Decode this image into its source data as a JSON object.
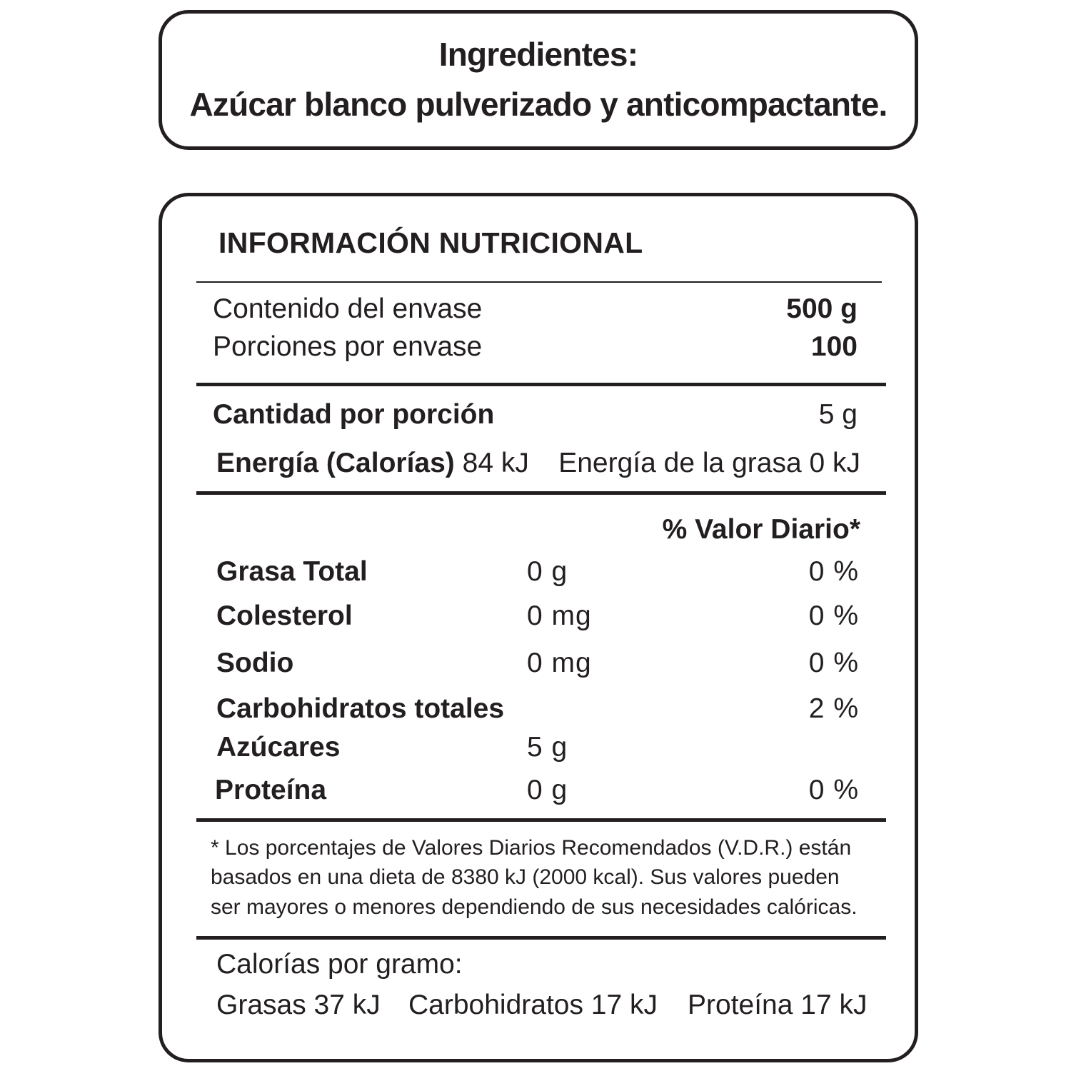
{
  "ingredients": {
    "title": "Ingredientes:",
    "text": "Azúcar blanco pulverizado y anticompactante."
  },
  "nutrition": {
    "title": "INFORMACIÓN NUTRICIONAL",
    "container_label": "Contenido del envase",
    "container_value": "500 g",
    "servings_label": "Porciones por envase",
    "servings_value": "100",
    "serving_label": "Cantidad por porción",
    "serving_value": "5 g",
    "energy_label": "Energía (Calorías)",
    "energy_value": "84 kJ",
    "energy_fat": "Energía de la grasa 0 kJ",
    "daily_value_header": "% Valor Diario*",
    "rows": [
      {
        "name": "Grasa Total",
        "amount": "0 g",
        "dv": "0 %"
      },
      {
        "name": "Colesterol",
        "amount": "0 mg",
        "dv": "0 %"
      },
      {
        "name": "Sodio",
        "amount": "0 mg",
        "dv": "0 %"
      },
      {
        "name": "Carbohidratos totales",
        "amount": "",
        "dv": "2 %"
      },
      {
        "name": "Azúcares",
        "amount": "5 g",
        "dv": ""
      },
      {
        "name": "Proteína",
        "amount": "0 g",
        "dv": "0 %"
      }
    ],
    "footnote": [
      "* Los porcentajes de Valores Diarios Recomendados (V.D.R.) están",
      "basados en una dieta de 8380 kJ (2000 kcal). Sus valores pueden",
      "ser mayores o menores dependiendo de sus necesidades calóricas."
    ],
    "calories_per_gram_label": "Calorías por gramo:",
    "calories_per_gram": [
      "Grasas 37 kJ",
      "Carbohidratos 17 kJ",
      "Proteína 17 kJ"
    ]
  }
}
